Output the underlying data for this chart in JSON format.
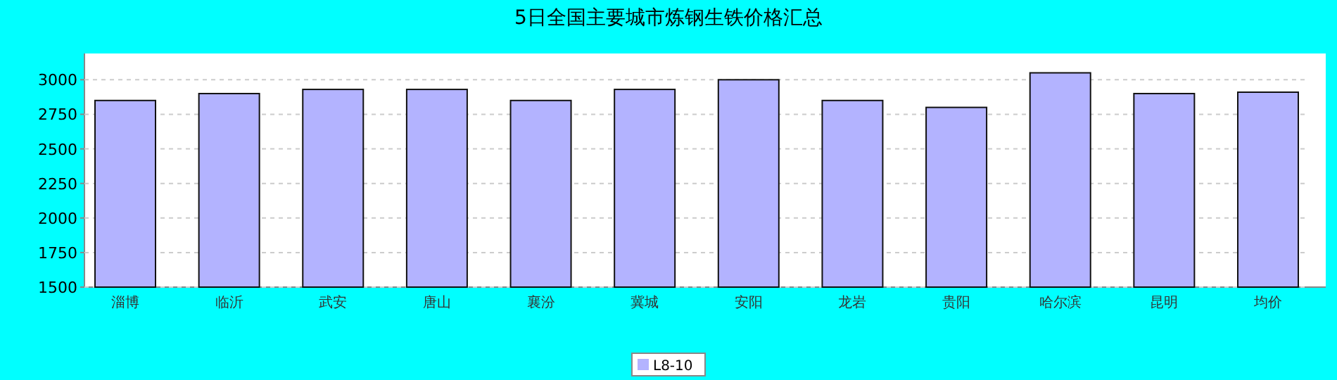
{
  "chart_data": {
    "type": "bar",
    "title": "5日全国主要城市炼钢生铁价格汇总",
    "categories": [
      "淄博",
      "临沂",
      "武安",
      "唐山",
      "襄汾",
      "冀城",
      "安阳",
      "龙岩",
      "贵阳",
      "哈尔滨",
      "昆明",
      "均价"
    ],
    "series": [
      {
        "name": "L8-10",
        "color": "#b3b3ff",
        "values": [
          2850,
          2900,
          2930,
          2930,
          2850,
          2930,
          3000,
          2850,
          2800,
          3050,
          2900,
          2910
        ]
      }
    ],
    "ylim": [
      1500,
      3190
    ],
    "yticks": [
      1500,
      1750,
      2000,
      2250,
      2500,
      2750,
      3000
    ],
    "grid": "y",
    "legend": "bottom"
  }
}
